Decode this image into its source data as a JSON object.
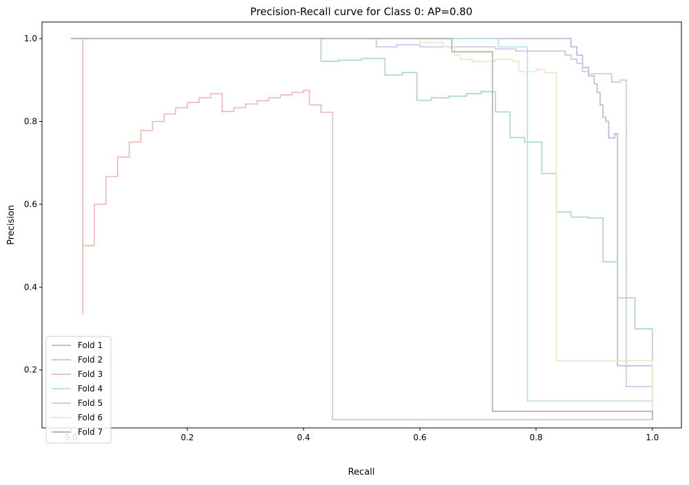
{
  "chart_data": {
    "type": "line",
    "title": "Precision-Recall curve for Class 0: AP=0.80",
    "xlabel": "Recall",
    "ylabel": "Precision",
    "xlim": [
      -0.05,
      1.05
    ],
    "ylim": [
      0.06,
      1.04
    ],
    "xticks": [
      0.0,
      0.2,
      0.4,
      0.6,
      0.8,
      1.0
    ],
    "xtick_labels": [
      "0.0",
      "0.2",
      "0.4",
      "0.6",
      "0.8",
      "1.0"
    ],
    "yticks": [
      0.2,
      0.4,
      0.6,
      0.8,
      1.0
    ],
    "ytick_labels": [
      "0.2",
      "0.4",
      "0.6",
      "0.8",
      "1.0"
    ],
    "grid": false,
    "legend_position": "lower-left",
    "series": [
      {
        "name": "Fold 1",
        "color": "#aeb9db",
        "points": [
          [
            0.0,
            1.0
          ],
          [
            0.86,
            1.0
          ],
          [
            0.86,
            0.98
          ],
          [
            0.87,
            0.98
          ],
          [
            0.87,
            0.96
          ],
          [
            0.88,
            0.96
          ],
          [
            0.88,
            0.93
          ],
          [
            0.89,
            0.93
          ],
          [
            0.89,
            0.91
          ],
          [
            0.9,
            0.91
          ],
          [
            0.9,
            0.89
          ],
          [
            0.905,
            0.89
          ],
          [
            0.905,
            0.87
          ],
          [
            0.91,
            0.87
          ],
          [
            0.91,
            0.84
          ],
          [
            0.915,
            0.84
          ],
          [
            0.915,
            0.81
          ],
          [
            0.92,
            0.81
          ],
          [
            0.92,
            0.8
          ],
          [
            0.925,
            0.8
          ],
          [
            0.925,
            0.76
          ],
          [
            0.935,
            0.76
          ],
          [
            0.935,
            0.77
          ],
          [
            0.94,
            0.77
          ],
          [
            0.94,
            0.21
          ],
          [
            1.0,
            0.21
          ]
        ]
      },
      {
        "name": "Fold 2",
        "color": "#a9d8b6",
        "points": [
          [
            0.0,
            1.0
          ],
          [
            0.43,
            1.0
          ],
          [
            0.43,
            0.945
          ],
          [
            0.46,
            0.945
          ],
          [
            0.46,
            0.948
          ],
          [
            0.5,
            0.948
          ],
          [
            0.5,
            0.952
          ],
          [
            0.54,
            0.952
          ],
          [
            0.54,
            0.912
          ],
          [
            0.57,
            0.912
          ],
          [
            0.57,
            0.918
          ],
          [
            0.595,
            0.918
          ],
          [
            0.595,
            0.851
          ],
          [
            0.62,
            0.851
          ],
          [
            0.62,
            0.857
          ],
          [
            0.65,
            0.857
          ],
          [
            0.65,
            0.861
          ],
          [
            0.68,
            0.861
          ],
          [
            0.68,
            0.867
          ],
          [
            0.705,
            0.867
          ],
          [
            0.705,
            0.872
          ],
          [
            0.73,
            0.872
          ],
          [
            0.73,
            0.823
          ],
          [
            0.755,
            0.823
          ],
          [
            0.755,
            0.761
          ],
          [
            0.78,
            0.761
          ],
          [
            0.78,
            0.75
          ],
          [
            0.81,
            0.75
          ],
          [
            0.81,
            0.674
          ],
          [
            0.835,
            0.674
          ],
          [
            0.835,
            0.581
          ],
          [
            0.86,
            0.581
          ],
          [
            0.86,
            0.569
          ],
          [
            0.89,
            0.569
          ],
          [
            0.89,
            0.567
          ],
          [
            0.915,
            0.567
          ],
          [
            0.915,
            0.461
          ],
          [
            0.94,
            0.461
          ],
          [
            0.94,
            0.374
          ],
          [
            0.97,
            0.374
          ],
          [
            0.97,
            0.299
          ],
          [
            1.0,
            0.299
          ],
          [
            1.0,
            0.08
          ]
        ]
      },
      {
        "name": "Fold 3",
        "color": "#f0b7b2",
        "points": [
          [
            0.02,
            0.333
          ],
          [
            0.02,
            1.0
          ],
          [
            0.02,
            0.5
          ],
          [
            0.04,
            0.5
          ],
          [
            0.04,
            0.6
          ],
          [
            0.06,
            0.6
          ],
          [
            0.06,
            0.667
          ],
          [
            0.08,
            0.667
          ],
          [
            0.08,
            0.714
          ],
          [
            0.1,
            0.714
          ],
          [
            0.1,
            0.75
          ],
          [
            0.12,
            0.75
          ],
          [
            0.12,
            0.778
          ],
          [
            0.14,
            0.778
          ],
          [
            0.14,
            0.8
          ],
          [
            0.16,
            0.8
          ],
          [
            0.16,
            0.818
          ],
          [
            0.18,
            0.818
          ],
          [
            0.18,
            0.833
          ],
          [
            0.2,
            0.833
          ],
          [
            0.2,
            0.846
          ],
          [
            0.22,
            0.846
          ],
          [
            0.22,
            0.857
          ],
          [
            0.24,
            0.857
          ],
          [
            0.24,
            0.867
          ],
          [
            0.26,
            0.867
          ],
          [
            0.26,
            0.824
          ],
          [
            0.28,
            0.824
          ],
          [
            0.28,
            0.833
          ],
          [
            0.3,
            0.833
          ],
          [
            0.3,
            0.842
          ],
          [
            0.32,
            0.842
          ],
          [
            0.32,
            0.85
          ],
          [
            0.34,
            0.85
          ],
          [
            0.34,
            0.857
          ],
          [
            0.36,
            0.857
          ],
          [
            0.36,
            0.864
          ],
          [
            0.38,
            0.864
          ],
          [
            0.38,
            0.87
          ],
          [
            0.4,
            0.87
          ],
          [
            0.4,
            0.875
          ],
          [
            0.41,
            0.875
          ],
          [
            0.41,
            0.84
          ],
          [
            0.43,
            0.84
          ],
          [
            0.43,
            0.822
          ],
          [
            0.45,
            0.822
          ],
          [
            0.45,
            0.08
          ],
          [
            1.0,
            0.08
          ]
        ]
      },
      {
        "name": "Fold 4",
        "color": "#b3dfe8",
        "points": [
          [
            0.0,
            1.0
          ],
          [
            0.735,
            1.0
          ],
          [
            0.735,
            0.98
          ],
          [
            0.785,
            0.98
          ],
          [
            0.785,
            0.125
          ],
          [
            1.0,
            0.125
          ],
          [
            1.0,
            0.08
          ]
        ]
      },
      {
        "name": "Fold 5",
        "color": "#c7c5e2",
        "points": [
          [
            0.0,
            1.0
          ],
          [
            0.525,
            1.0
          ],
          [
            0.525,
            0.98
          ],
          [
            0.56,
            0.98
          ],
          [
            0.56,
            0.985
          ],
          [
            0.6,
            0.985
          ],
          [
            0.6,
            0.98
          ],
          [
            0.73,
            0.98
          ],
          [
            0.73,
            0.975
          ],
          [
            0.765,
            0.975
          ],
          [
            0.765,
            0.97
          ],
          [
            0.85,
            0.97
          ],
          [
            0.85,
            0.96
          ],
          [
            0.86,
            0.96
          ],
          [
            0.86,
            0.95
          ],
          [
            0.87,
            0.95
          ],
          [
            0.87,
            0.94
          ],
          [
            0.88,
            0.94
          ],
          [
            0.88,
            0.92
          ],
          [
            0.89,
            0.92
          ],
          [
            0.89,
            0.915
          ],
          [
            0.93,
            0.915
          ],
          [
            0.93,
            0.895
          ],
          [
            0.945,
            0.895
          ],
          [
            0.945,
            0.9
          ],
          [
            0.955,
            0.9
          ],
          [
            0.955,
            0.16
          ],
          [
            1.0,
            0.16
          ],
          [
            1.0,
            0.08
          ]
        ]
      },
      {
        "name": "Fold 6",
        "color": "#f0e3c3",
        "points": [
          [
            0.0,
            1.0
          ],
          [
            0.6,
            1.0
          ],
          [
            0.6,
            0.99
          ],
          [
            0.64,
            0.99
          ],
          [
            0.64,
            0.98
          ],
          [
            0.66,
            0.98
          ],
          [
            0.66,
            0.96
          ],
          [
            0.67,
            0.96
          ],
          [
            0.67,
            0.95
          ],
          [
            0.69,
            0.95
          ],
          [
            0.69,
            0.945
          ],
          [
            0.73,
            0.945
          ],
          [
            0.73,
            0.95
          ],
          [
            0.76,
            0.95
          ],
          [
            0.76,
            0.945
          ],
          [
            0.77,
            0.945
          ],
          [
            0.77,
            0.92
          ],
          [
            0.8,
            0.92
          ],
          [
            0.8,
            0.925
          ],
          [
            0.815,
            0.925
          ],
          [
            0.815,
            0.918
          ],
          [
            0.835,
            0.918
          ],
          [
            0.835,
            0.222
          ],
          [
            1.0,
            0.222
          ],
          [
            1.0,
            0.08
          ]
        ]
      },
      {
        "name": "Fold 7",
        "color": "#ababab",
        "points": [
          [
            0.0,
            1.0
          ],
          [
            0.655,
            1.0
          ],
          [
            0.655,
            0.968
          ],
          [
            0.725,
            0.968
          ],
          [
            0.725,
            0.1
          ],
          [
            1.0,
            0.1
          ],
          [
            1.0,
            0.08
          ]
        ]
      }
    ]
  }
}
